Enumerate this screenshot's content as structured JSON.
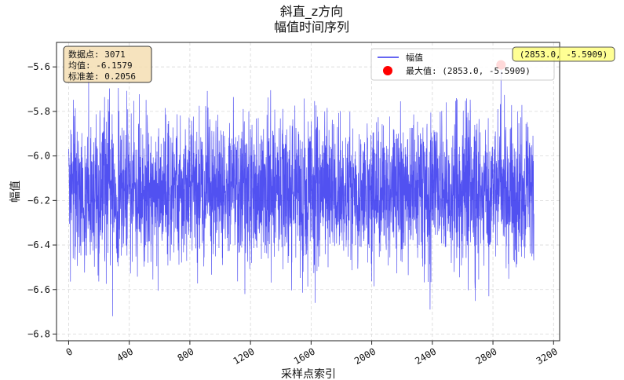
{
  "chart_data": {
    "type": "line",
    "title": "斜直_z方向",
    "subtitle": "幅值时间序列",
    "xlabel": "采样点索引",
    "ylabel": "幅值",
    "xlim": [
      -80,
      3240
    ],
    "ylim": [
      -6.83,
      -5.49
    ],
    "xticks": [
      0,
      400,
      800,
      1200,
      1600,
      2000,
      2400,
      2800,
      3200
    ],
    "xtick_labels": [
      "0",
      "400",
      "800",
      "1200",
      "1600",
      "2000",
      "2400",
      "2800",
      "3200"
    ],
    "yticks": [
      -5.6,
      -5.8,
      -6.0,
      -6.2,
      -6.4,
      -6.6,
      -6.8
    ],
    "ytick_labels": [
      "−5.6",
      "−5.8",
      "−6.0",
      "−6.2",
      "−6.4",
      "−6.6",
      "−6.8"
    ],
    "grid": true,
    "series": [
      {
        "name": "幅值",
        "color": "#3333ee",
        "n_points": 3071,
        "x_range": [
          0,
          3070
        ],
        "mean": -6.1579,
        "std": 0.2056,
        "y_min_approx": -6.72,
        "y_max": -5.5909,
        "deep_minima": [
          [
            290,
            -6.72
          ],
          [
            2385,
            -6.69
          ],
          [
            1627,
            -6.66
          ],
          [
            1163,
            -6.62
          ],
          [
            2773,
            -6.63
          ]
        ]
      }
    ],
    "max_point": {
      "x": 2853.0,
      "y": -5.5909,
      "color": "#ff0000"
    },
    "legend": {
      "position": "top-right",
      "entries": [
        "幅值",
        "最大值: (2853.0, -5.5909)"
      ]
    },
    "stats_box": {
      "lines": [
        "数据点: 3071",
        "均值: -6.1579",
        "标准差: 0.2056"
      ],
      "position": "top-left"
    },
    "annotation": {
      "text": "(2853.0, -5.5909)",
      "x": 2853.0,
      "y": -5.5909
    }
  }
}
